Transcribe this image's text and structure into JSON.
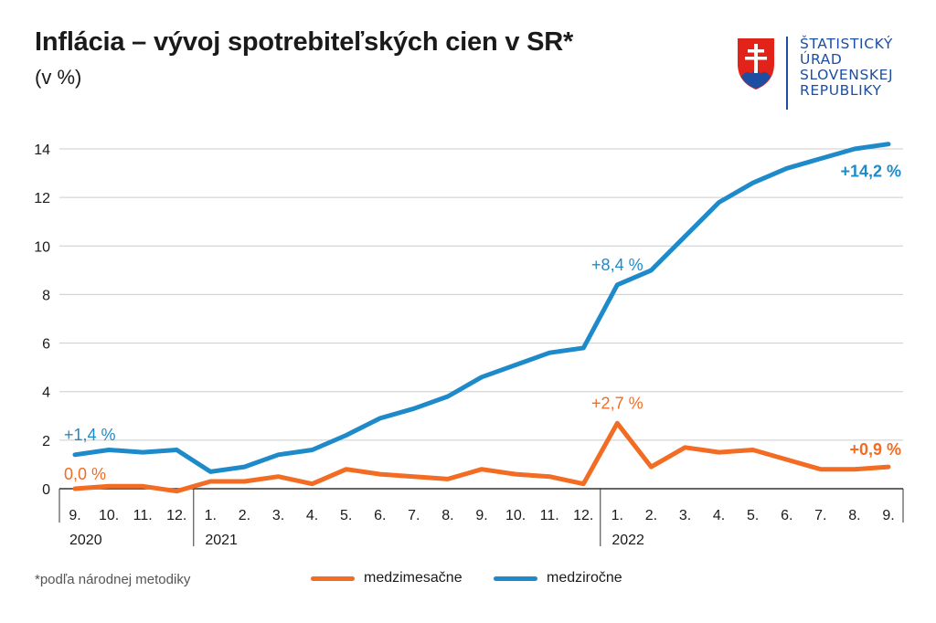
{
  "header": {
    "title": "Inflácia – vývoj spotrebiteľských cien v SR*",
    "subtitle": "(v %)"
  },
  "logo": {
    "lines": [
      "ŠTATISTICKÝ",
      "ÚRAD",
      "SLOVENSKEJ",
      "REPUBLIKY"
    ],
    "icon": "slovak-coat-of-arms"
  },
  "footnote": "*podľa národnej metodiky",
  "colors": {
    "orange": "#f26c23",
    "blue": "#1e8ac9",
    "grid": "#cccccc",
    "axis": "#333333"
  },
  "chart_data": {
    "type": "line",
    "categories": [
      "9.",
      "10.",
      "11.",
      "12.",
      "1.",
      "2.",
      "3.",
      "4.",
      "5.",
      "6.",
      "7.",
      "8.",
      "9.",
      "10.",
      "11.",
      "12.",
      "1.",
      "2.",
      "3.",
      "4.",
      "5.",
      "6.",
      "7.",
      "8.",
      "9."
    ],
    "year_labels": [
      {
        "label": "2020",
        "index": 0
      },
      {
        "label": "2021",
        "index": 4
      },
      {
        "label": "2022",
        "index": 16
      }
    ],
    "ylim": [
      0,
      14
    ],
    "yticks": [
      0,
      2,
      4,
      6,
      8,
      10,
      12,
      14
    ],
    "grid": true,
    "series": [
      {
        "name": "medzimesačne",
        "color": "#f26c23",
        "values": [
          0.0,
          0.1,
          0.1,
          -0.1,
          0.3,
          0.3,
          0.5,
          0.2,
          0.8,
          0.6,
          0.5,
          0.4,
          0.8,
          0.6,
          0.5,
          0.2,
          2.7,
          0.9,
          1.7,
          1.5,
          1.6,
          1.2,
          0.8,
          0.8,
          0.9
        ]
      },
      {
        "name": "medziročne",
        "color": "#1e8ac9",
        "values": [
          1.4,
          1.6,
          1.5,
          1.6,
          0.7,
          0.9,
          1.4,
          1.6,
          2.2,
          2.9,
          3.3,
          3.8,
          4.6,
          5.1,
          5.6,
          5.8,
          8.4,
          9.0,
          10.4,
          11.8,
          12.6,
          13.2,
          13.6,
          14.0,
          14.2
        ]
      }
    ],
    "annotations": [
      {
        "text": "+1,4 %",
        "series": 1,
        "index": 0,
        "bold": false
      },
      {
        "text": "+8,4 %",
        "series": 1,
        "index": 16,
        "bold": false
      },
      {
        "text": "+14,2 %",
        "series": 1,
        "index": 24,
        "bold": true
      },
      {
        "text": "0,0 %",
        "series": 0,
        "index": 0,
        "bold": false
      },
      {
        "text": "+2,7 %",
        "series": 0,
        "index": 16,
        "bold": false
      },
      {
        "text": "+0,9 %",
        "series": 0,
        "index": 24,
        "bold": true
      }
    ]
  }
}
